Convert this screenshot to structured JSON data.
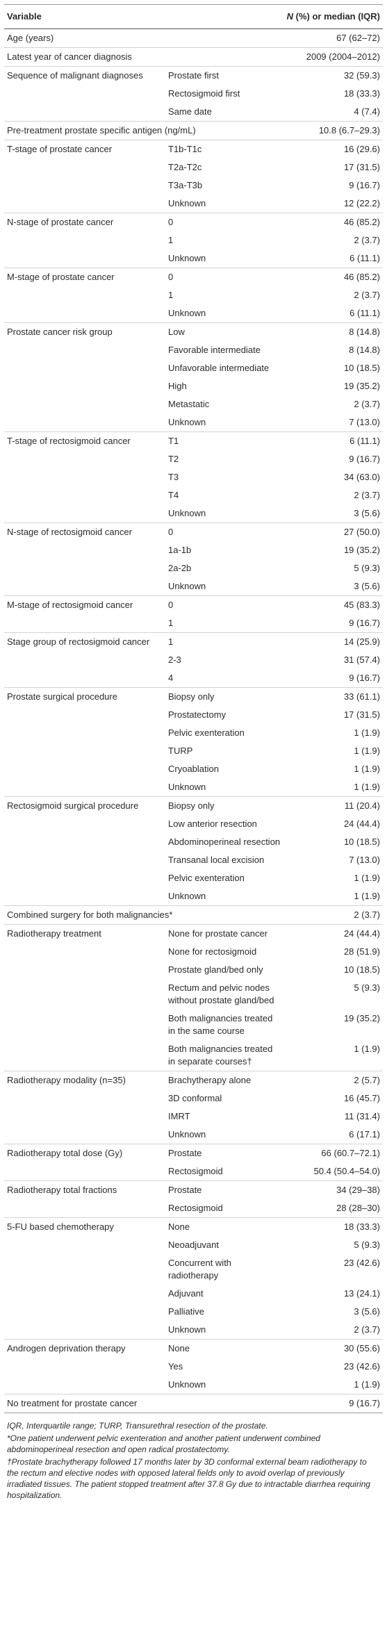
{
  "header": {
    "variable": "Variable",
    "value_n": "N",
    "value_rest": "(%) or median (IQR)"
  },
  "groups": [
    {
      "variable": "Age (years)",
      "value": "67 (62–72)"
    },
    {
      "variable": "Latest year of cancer diagnosis",
      "value": "2009 (2004–2012)"
    },
    {
      "variable": "Sequence of malignant diagnoses",
      "rows": [
        {
          "label": "Prostate first",
          "value": "32 (59.3)"
        },
        {
          "label": "Rectosigmoid first",
          "value": "18 (33.3)"
        },
        {
          "label": "Same date",
          "value": "4 (7.4)"
        }
      ]
    },
    {
      "variable": "Pre-treatment prostate specific antigen (ng/mL)",
      "value": "10.8 (6.7–29.3)"
    },
    {
      "variable": "T-stage of prostate cancer",
      "rows": [
        {
          "label": "T1b-T1c",
          "value": "16 (29.6)"
        },
        {
          "label": "T2a-T2c",
          "value": "17 (31.5)"
        },
        {
          "label": "T3a-T3b",
          "value": "9 (16.7)"
        },
        {
          "label": "Unknown",
          "value": "12 (22.2)"
        }
      ]
    },
    {
      "variable": "N-stage of prostate cancer",
      "rows": [
        {
          "label": "0",
          "value": "46 (85.2)"
        },
        {
          "label": "1",
          "value": "2 (3.7)"
        },
        {
          "label": "Unknown",
          "value": "6 (11.1)"
        }
      ]
    },
    {
      "variable": "M-stage of prostate cancer",
      "rows": [
        {
          "label": "0",
          "value": "46 (85.2)"
        },
        {
          "label": "1",
          "value": "2 (3.7)"
        },
        {
          "label": "Unknown",
          "value": "6 (11.1)"
        }
      ]
    },
    {
      "variable": "Prostate cancer risk group",
      "rows": [
        {
          "label": "Low",
          "value": "8 (14.8)"
        },
        {
          "label": "Favorable intermediate",
          "value": "8 (14.8)"
        },
        {
          "label": "Unfavorable intermediate",
          "value": "10 (18.5)"
        },
        {
          "label": "High",
          "value": "19 (35.2)"
        },
        {
          "label": "Metastatic",
          "value": "2 (3.7)"
        },
        {
          "label": "Unknown",
          "value": "7 (13.0)"
        }
      ]
    },
    {
      "variable": "T-stage of rectosigmoid cancer",
      "rows": [
        {
          "label": "T1",
          "value": "6 (11.1)"
        },
        {
          "label": "T2",
          "value": "9 (16.7)"
        },
        {
          "label": "T3",
          "value": "34 (63.0)"
        },
        {
          "label": "T4",
          "value": "2 (3.7)"
        },
        {
          "label": "Unknown",
          "value": "3 (5.6)"
        }
      ]
    },
    {
      "variable": "N-stage of rectosigmoid cancer",
      "rows": [
        {
          "label": "0",
          "value": "27 (50.0)"
        },
        {
          "label": "1a-1b",
          "value": "19 (35.2)"
        },
        {
          "label": "2a-2b",
          "value": "5 (9.3)"
        },
        {
          "label": "Unknown",
          "value": "3 (5.6)"
        }
      ]
    },
    {
      "variable": "M-stage of rectosigmoid cancer",
      "rows": [
        {
          "label": "0",
          "value": "45 (83.3)"
        },
        {
          "label": "1",
          "value": "9 (16.7)"
        }
      ]
    },
    {
      "variable": "Stage group of rectosigmoid cancer",
      "rows": [
        {
          "label": "1",
          "value": "14 (25.9)"
        },
        {
          "label": "2-3",
          "value": "31 (57.4)"
        },
        {
          "label": "4",
          "value": "9 (16.7)"
        }
      ]
    },
    {
      "variable": "Prostate surgical procedure",
      "rows": [
        {
          "label": "Biopsy only",
          "value": "33 (61.1)"
        },
        {
          "label": "Prostatectomy",
          "value": "17 (31.5)"
        },
        {
          "label": "Pelvic exenteration",
          "value": "1 (1.9)"
        },
        {
          "label": "TURP",
          "value": "1 (1.9)"
        },
        {
          "label": "Cryoablation",
          "value": "1 (1.9)"
        },
        {
          "label": "Unknown",
          "value": "1 (1.9)"
        }
      ]
    },
    {
      "variable": "Rectosigmoid surgical procedure",
      "rows": [
        {
          "label": "Biopsy only",
          "value": "11 (20.4)"
        },
        {
          "label": "Low anterior resection",
          "value": "24 (44.4)"
        },
        {
          "label": "Abdominoperineal resection",
          "value": "10 (18.5)"
        },
        {
          "label": "Transanal local excision",
          "value": "7 (13.0)"
        },
        {
          "label": "Pelvic exenteration",
          "value": "1 (1.9)"
        },
        {
          "label": "Unknown",
          "value": "1 (1.9)"
        }
      ]
    },
    {
      "variable": "Combined surgery for both malignancies*",
      "value": "2 (3.7)"
    },
    {
      "variable": "Radiotherapy treatment",
      "rows": [
        {
          "label": "None for prostate cancer",
          "value": "24 (44.4)"
        },
        {
          "label": "None for rectosigmoid",
          "value": "28 (51.9)"
        },
        {
          "label": "Prostate gland/bed only",
          "value": "10 (18.5)"
        },
        {
          "label": "Rectum and pelvic nodes without prostate gland/bed",
          "value": "5 (9.3)"
        },
        {
          "label": "Both malignancies treated in the same course",
          "value": "19 (35.2)"
        },
        {
          "label": "Both malignancies treated in separate courses†",
          "value": "1 (1.9)"
        }
      ]
    },
    {
      "variable": "Radiotherapy modality (n=35)",
      "rows": [
        {
          "label": "Brachytherapy alone",
          "value": "2 (5.7)"
        },
        {
          "label": "3D conformal",
          "value": "16 (45.7)"
        },
        {
          "label": "IMRT",
          "value": "11 (31.4)"
        },
        {
          "label": "Unknown",
          "value": "6 (17.1)"
        }
      ]
    },
    {
      "variable": "Radiotherapy total dose (Gy)",
      "rows": [
        {
          "label": "Prostate",
          "value": "66 (60.7–72.1)"
        },
        {
          "label": "Rectosigmoid",
          "value": "50.4 (50.4–54.0)"
        }
      ]
    },
    {
      "variable": "Radiotherapy total fractions",
      "rows": [
        {
          "label": "Prostate",
          "value": "34 (29–38)"
        },
        {
          "label": "Rectosigmoid",
          "value": "28 (28–30)"
        }
      ]
    },
    {
      "variable": "5-FU based chemotherapy",
      "rows": [
        {
          "label": "None",
          "value": "18 (33.3)"
        },
        {
          "label": "Neoadjuvant",
          "value": "5 (9.3)"
        },
        {
          "label": "Concurrent with radiotherapy",
          "value": "23 (42.6)"
        },
        {
          "label": "Adjuvant",
          "value": "13 (24.1)"
        },
        {
          "label": "Palliative",
          "value": "3 (5.6)"
        },
        {
          "label": "Unknown",
          "value": "2 (3.7)"
        }
      ]
    },
    {
      "variable": "Androgen deprivation therapy",
      "rows": [
        {
          "label": "None",
          "value": "30 (55.6)"
        },
        {
          "label": "Yes",
          "value": "23 (42.6)"
        },
        {
          "label": "Unknown",
          "value": "1 (1.9)"
        }
      ]
    },
    {
      "variable": "No treatment for prostate cancer",
      "value": "9 (16.7)"
    }
  ],
  "footnotes": [
    "IQR, Interquartile range; TURP, Transurethral resection of the prostate.",
    "*One patient underwent pelvic exenteration and another patient underwent combined abdominoperineal resection and open radical prostatectomy.",
    "†Prostate brachytherapy followed 17 months later by 3D conformal external beam radiotherapy to the rectum and elective nodes with opposed lateral fields only to avoid overlap of previously irradiated tissues. The patient stopped treatment after 37.8 Gy due to intractable diarrhea requiring hospitalization."
  ]
}
